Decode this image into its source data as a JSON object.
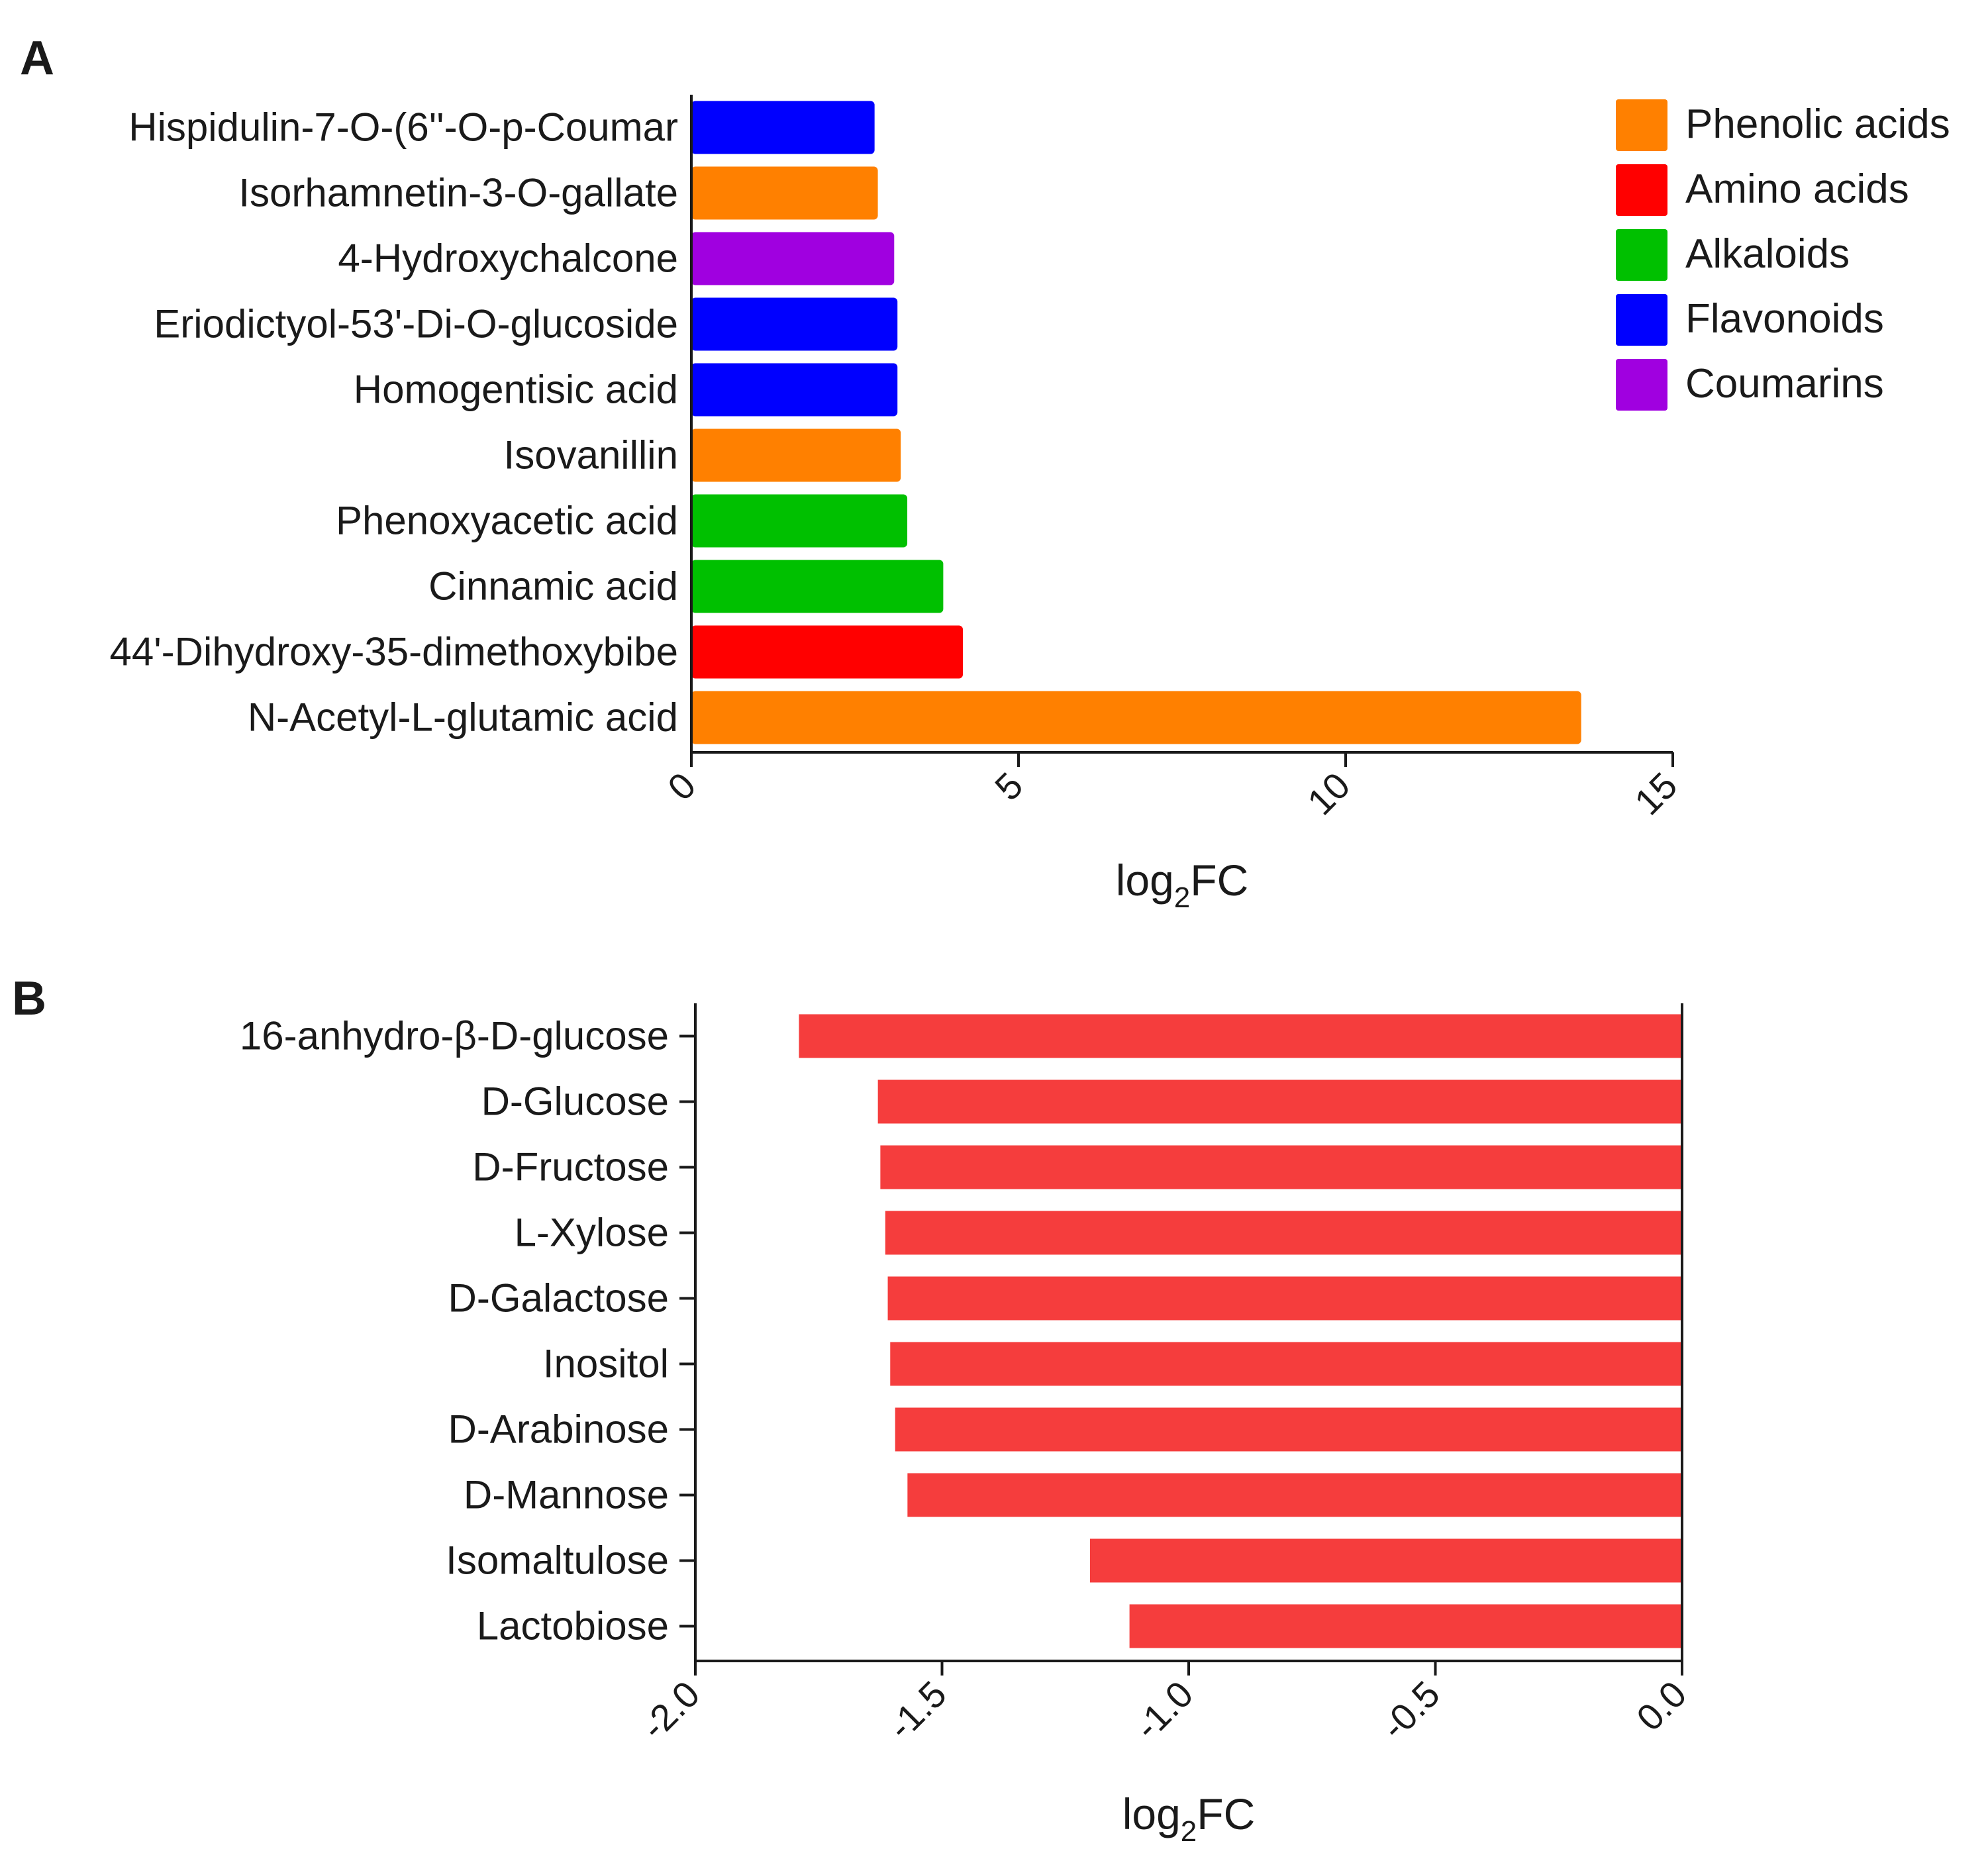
{
  "chart_data": [
    {
      "panel": "A",
      "type": "bar",
      "orientation": "horizontal",
      "categories": [
        "Hispidulin-7-O-(6''-O-p-Coumar",
        "Isorhamnetin-3-O-gallate",
        "4-Hydroxychalcone",
        "Eriodictyol-53'-Di-O-glucoside",
        "Homogentisic acid",
        "Isovanillin",
        "Phenoxyacetic acid",
        "Cinnamic acid",
        "44'-Dihydroxy-35-dimethoxybibe",
        "N-Acetyl-L-glutamic acid"
      ],
      "values": [
        2.8,
        2.85,
        3.1,
        3.15,
        3.15,
        3.2,
        3.3,
        3.85,
        4.15,
        13.6
      ],
      "classes": [
        "Flavonoids",
        "Phenolic acids",
        "Coumarins",
        "Flavonoids",
        "Flavonoids",
        "Phenolic acids",
        "Alkaloids",
        "Alkaloids",
        "Amino acids",
        "Phenolic acids"
      ],
      "xlabel": "log",
      "xlabel_sub": "2",
      "xlabel_suffix": "FC",
      "xlim": [
        0,
        15
      ],
      "ticks": [
        0,
        5,
        10,
        15
      ],
      "legend": [
        {
          "label": "Phenolic acids",
          "color": "#FF8000"
        },
        {
          "label": "Amino acids",
          "color": "#FF0000"
        },
        {
          "label": "Alkaloids",
          "color": "#00C000"
        },
        {
          "label": "Flavonoids",
          "color": "#0000FF"
        },
        {
          "label": "Coumarins",
          "color": "#A000E0"
        }
      ],
      "legend_position": "top-right"
    },
    {
      "panel": "B",
      "type": "bar",
      "orientation": "horizontal",
      "categories": [
        "16-anhydro-β-D-glucose",
        "D-Glucose",
        "D-Fructose",
        "L-Xylose",
        "D-Galactose",
        "Inositol",
        "D-Arabinose",
        "D-Mannose",
        "Isomaltulose",
        "Lactobiose"
      ],
      "values": [
        -1.79,
        -1.63,
        -1.625,
        -1.615,
        -1.61,
        -1.605,
        -1.595,
        -1.57,
        -1.2,
        -1.12
      ],
      "bar_color": "#F53D3D",
      "xlabel": "log",
      "xlabel_sub": "2",
      "xlabel_suffix": "FC",
      "xlim": [
        -2.0,
        0.0
      ],
      "ticks": [
        -2.0,
        -1.5,
        -1.0,
        -0.5,
        0.0
      ],
      "tick_labels": [
        "-2.0",
        "-1.5",
        "-1.0",
        "-0.5",
        "0.0"
      ]
    }
  ]
}
